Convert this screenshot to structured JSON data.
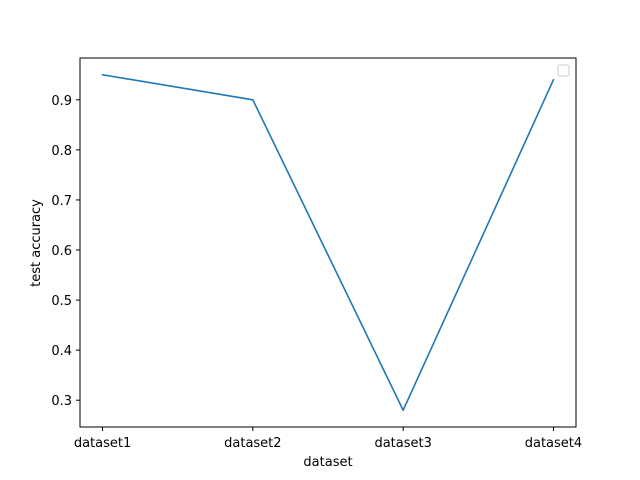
{
  "chart_data": {
    "type": "line",
    "title": "",
    "xlabel": "dataset",
    "ylabel": "test accuracy",
    "categories": [
      "dataset1",
      "dataset2",
      "dataset3",
      "dataset4"
    ],
    "series": [
      {
        "values": [
          0.95,
          0.9,
          0.28,
          0.94
        ],
        "color": "#1f77b4"
      }
    ],
    "yticks": [
      0.3,
      0.4,
      0.5,
      0.6,
      0.7,
      0.8,
      0.9
    ],
    "ytick_labels": [
      "0.3",
      "0.4",
      "0.5",
      "0.6",
      "0.7",
      "0.8",
      "0.9"
    ],
    "ylim": [
      0.2465,
      0.9835
    ],
    "grid": false,
    "legend": {
      "placement": "upper right",
      "entries": []
    }
  }
}
